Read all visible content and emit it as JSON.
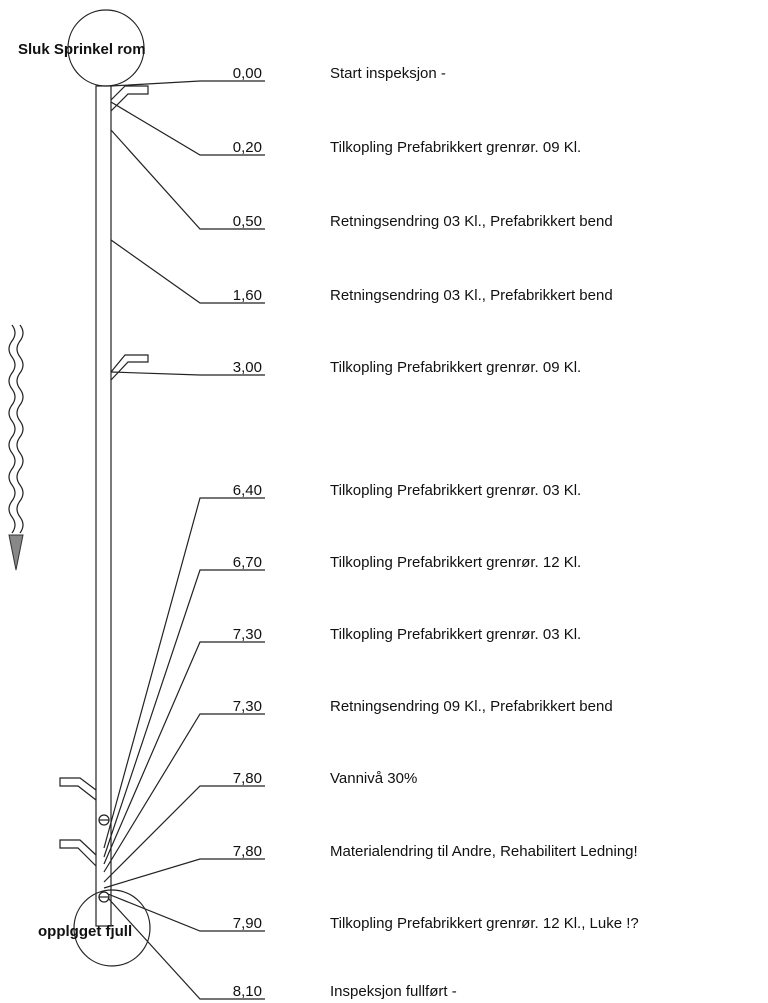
{
  "top_label": "Sluk Sprinkel rom",
  "bottom_label": "opplgget fjull",
  "entries": [
    {
      "distance": "0,00",
      "description": "Start inspeksjon -"
    },
    {
      "distance": "0,20",
      "description": "Tilkopling Prefabrikkert grenrør.  09 Kl."
    },
    {
      "distance": "0,50",
      "description": "Retningsendring  03 Kl., Prefabrikkert bend"
    },
    {
      "distance": "1,60",
      "description": "Retningsendring  03 Kl., Prefabrikkert bend"
    },
    {
      "distance": "3,00",
      "description": "Tilkopling Prefabrikkert grenrør.  09 Kl."
    },
    {
      "distance": "6,40",
      "description": "Tilkopling Prefabrikkert grenrør.  03 Kl."
    },
    {
      "distance": "6,70",
      "description": "Tilkopling Prefabrikkert grenrør.  12 Kl."
    },
    {
      "distance": "7,30",
      "description": "Tilkopling Prefabrikkert grenrør.  03 Kl."
    },
    {
      "distance": "7,30",
      "description": "Retningsendring  09 Kl., Prefabrikkert bend"
    },
    {
      "distance": "7,80",
      "description": "Vannivå 30%"
    },
    {
      "distance": "7,80",
      "description": "Materialendring til Andre, Rehabilitert Ledning!"
    },
    {
      "distance": "7,90",
      "description": "Tilkopling Prefabrikkert grenrør.  12 Kl., Luke !?"
    },
    {
      "distance": "8,10",
      "description": "Inspeksjon fullført -"
    }
  ]
}
